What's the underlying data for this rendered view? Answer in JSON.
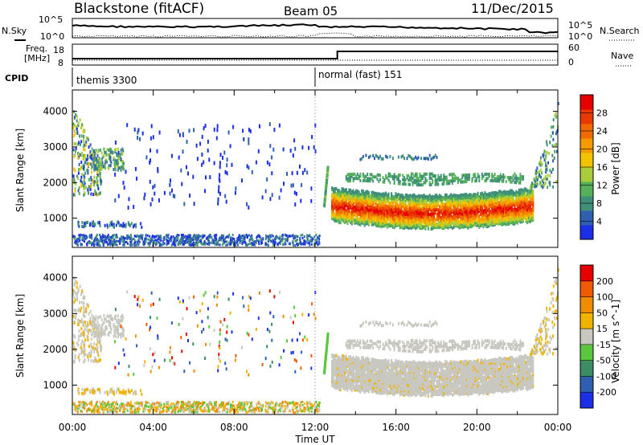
{
  "header": {
    "station": "Blackstone (fitACF)",
    "beam": "Beam 05",
    "date": "11/Dec/2015"
  },
  "summary_panels": {
    "nsky_label": "N.Sky",
    "nsearch_label": "N.Search",
    "noise_ticks_left": [
      "10^5",
      "10^0"
    ],
    "noise_ticks_right": [
      "10^5",
      "10^0"
    ],
    "freq_label_top": "Freq.",
    "freq_label_unit": "[MHz]",
    "freq_ticks": [
      "18",
      "8"
    ],
    "nave_label": "Nave",
    "nave_ticks": [
      "60",
      "0"
    ],
    "cpid_label": "CPID",
    "cpid_segments": [
      {
        "name": "themis 3300",
        "start_hour": 0
      },
      {
        "name": "normal (fast) 151",
        "start_hour": 12
      }
    ]
  },
  "axes": {
    "xlabel": "Time UT",
    "x_tick_labels": [
      "00:00",
      "04:00",
      "08:00",
      "12:00",
      "16:00",
      "20:00",
      "00:00"
    ],
    "ylabel": "Slant Range [km]",
    "y_tick_labels": [
      "1000",
      "2000",
      "3000",
      "4000"
    ]
  },
  "colorbars": {
    "power": {
      "label": "Power [dB]",
      "ticks": [
        "4",
        "8",
        "12",
        "16",
        "20",
        "24",
        "28"
      ],
      "colors": [
        "#1b2ee8",
        "#2f5fb0",
        "#3f8f7a",
        "#55b05a",
        "#a8cc3a",
        "#f2c400",
        "#f59a00",
        "#f06a00",
        "#e83a00",
        "#e60000"
      ]
    },
    "velocity": {
      "label": "Velocity [m s^-1]",
      "ticks": [
        "200",
        "100",
        "50",
        "15",
        "-15",
        "-50",
        "-100",
        "-200"
      ],
      "colors": [
        "#1b2ee8",
        "#2f5fb0",
        "#3c8c64",
        "#5ac83c",
        "#c8c8c0",
        "#f0b400",
        "#f08c00",
        "#f05a00",
        "#e60000"
      ]
    }
  },
  "chart_data": [
    {
      "type": "heatmap",
      "title": "Power",
      "xlabel": "Time UT",
      "ylabel": "Slant Range [km]",
      "xlim": [
        0,
        24
      ],
      "ylim": [
        180,
        4600
      ],
      "colorbar": "Power [dB]",
      "colorbar_range": [
        0,
        32
      ],
      "features": [
        {
          "name": "ground scatter band",
          "x": [
            12.8,
            22.8
          ],
          "range_km": [
            950,
            1700
          ],
          "peak_power_db": 28
        },
        {
          "name": "upper echo band",
          "x": [
            13.5,
            22.5
          ],
          "range_km": [
            1900,
            2700
          ],
          "peak_power_db": 10
        },
        {
          "name": "morning echoes",
          "x": [
            0,
            1.4
          ],
          "range_km": [
            1500,
            4200
          ],
          "peak_power_db": 18
        },
        {
          "name": "near range clutter",
          "x": [
            0,
            12
          ],
          "range_km": [
            200,
            500
          ],
          "peak_power_db": 6
        }
      ]
    },
    {
      "type": "heatmap",
      "title": "Velocity",
      "xlabel": "Time UT",
      "ylabel": "Slant Range [km]",
      "xlim": [
        0,
        24
      ],
      "ylim": [
        180,
        4600
      ],
      "colorbar": "Velocity [m s^-1]",
      "colorbar_range": [
        -200,
        200
      ],
      "features": [
        {
          "name": "ground scatter (low velocity)",
          "x": [
            13,
            22.8
          ],
          "range_km": [
            950,
            2100
          ],
          "velocity": 0
        },
        {
          "name": "near range negative velocity",
          "x": [
            0,
            12
          ],
          "range_km": [
            200,
            500
          ],
          "velocity": -40
        },
        {
          "name": "positive velocity streak",
          "x": [
            12.5,
            13
          ],
          "range_km": [
            1500,
            2300
          ],
          "velocity": 40
        }
      ]
    }
  ]
}
